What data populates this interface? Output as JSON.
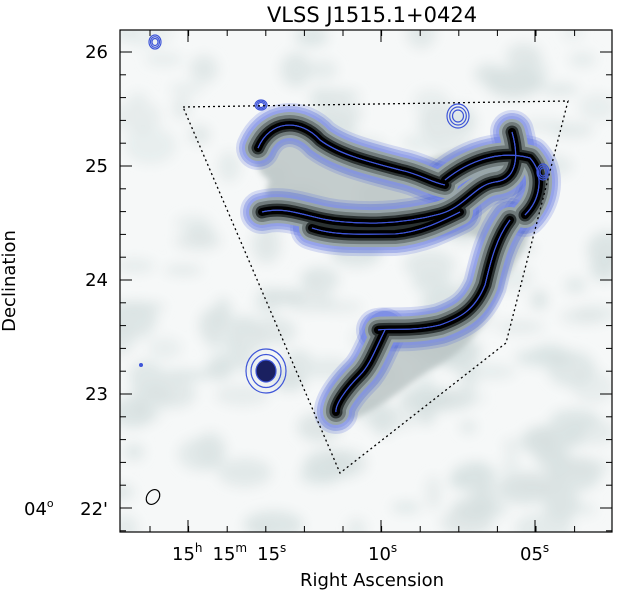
{
  "figure": {
    "title": "VLSS J1515.1+0424",
    "xlabel": "Right Ascension",
    "ylabel": "Declination",
    "dec_tick_labels": [
      "26",
      "25",
      "24",
      "23",
      "22'"
    ],
    "dec_degree_label": {
      "deg": "04",
      "sup": "o"
    },
    "ra_tick_labels": [
      {
        "hours": "15",
        "h_sup": "h",
        "min": "15",
        "m_sup": "m",
        "sec": "15",
        "s_sup": "s"
      },
      {
        "sec": "10",
        "s_sup": "s"
      },
      {
        "sec": "05",
        "s_sup": "s"
      }
    ]
  },
  "colors": {
    "contour": "#3e55d8",
    "core": "#000000",
    "background_noise": "#d6e0e0",
    "frame": "#000000"
  }
}
